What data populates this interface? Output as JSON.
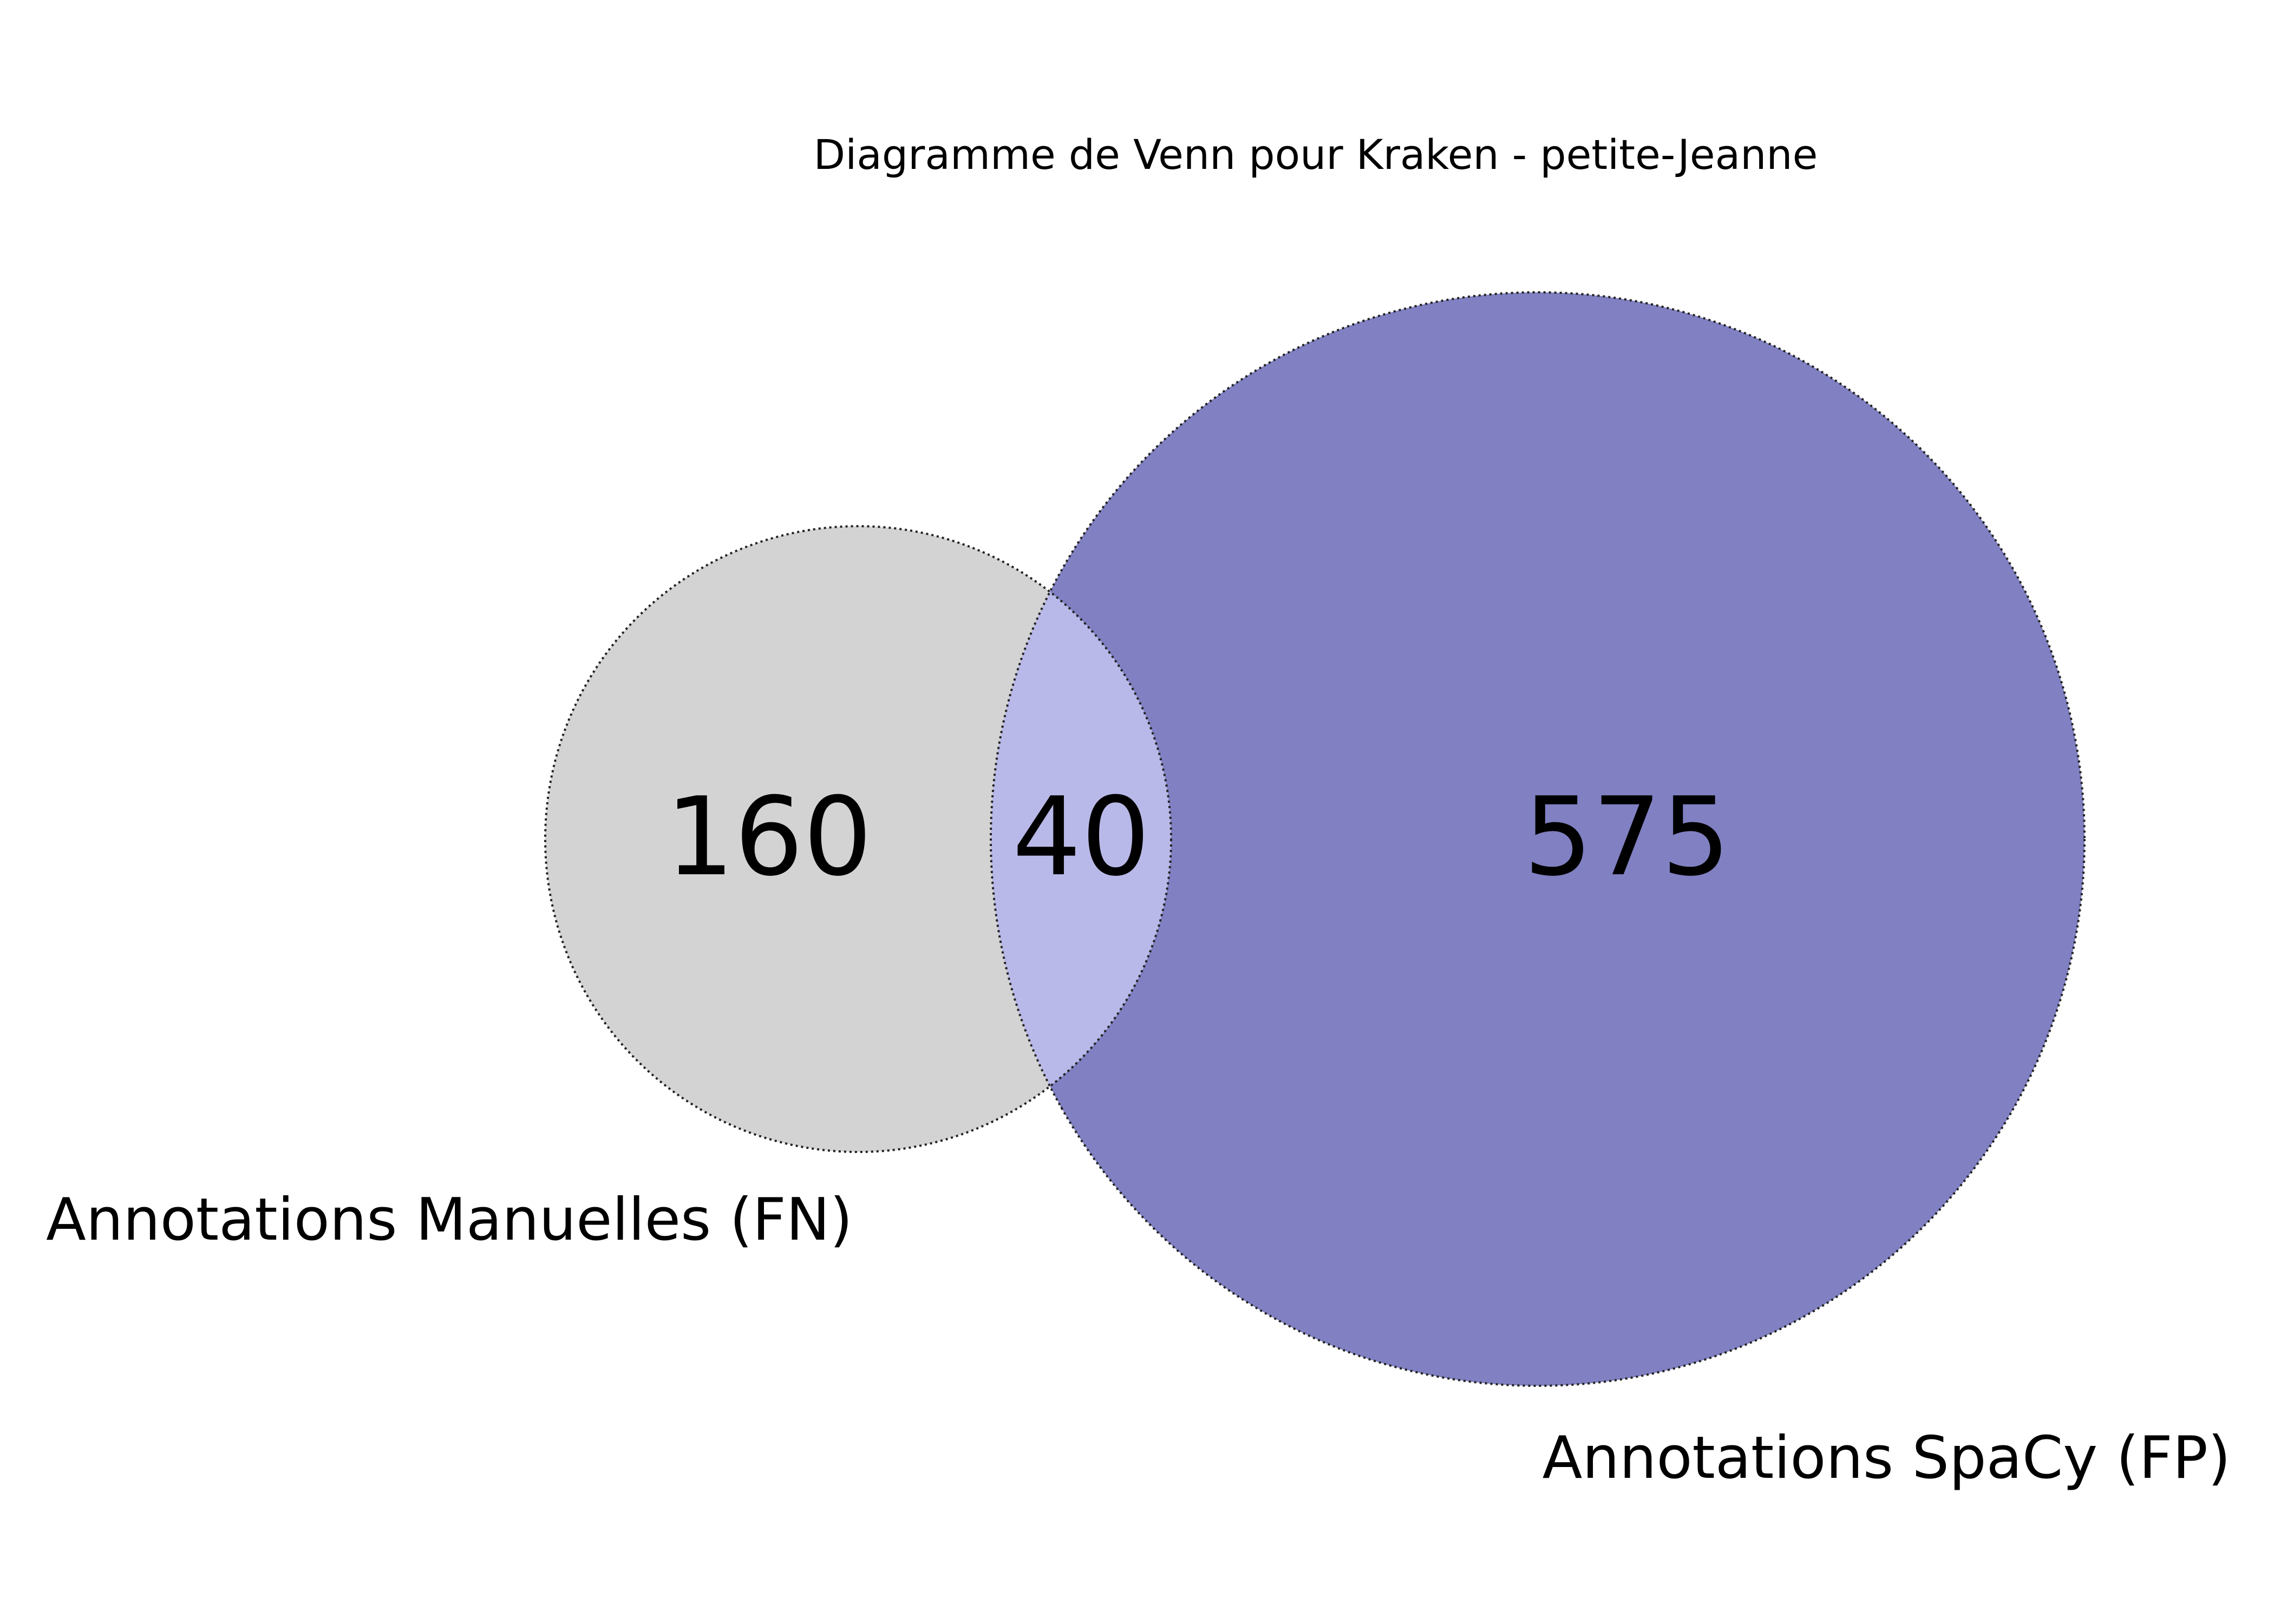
{
  "title": "Diagramme de Venn pour Kraken - petite-Jeanne",
  "sets": {
    "manual": {
      "label": "Annotations Manuelles (FN)",
      "color": "#d3d3d3"
    },
    "spacy": {
      "label": "Annotations SpaCy (FP)",
      "color": "#8080c2"
    },
    "intersection_color": "#b9b9e9"
  },
  "counts": {
    "manual_only": "160",
    "both": "40",
    "spacy_only": "575"
  }
}
